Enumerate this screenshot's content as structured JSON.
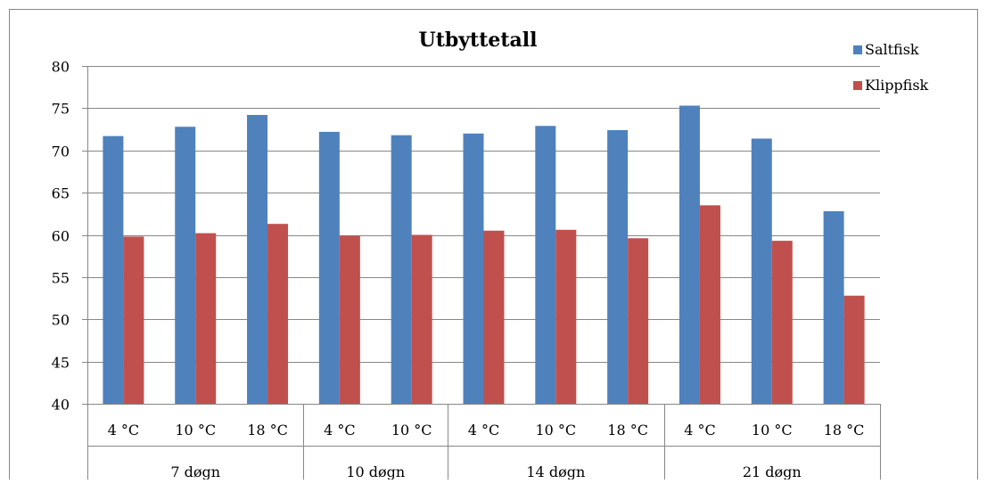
{
  "chart_data": {
    "type": "bar",
    "title": "Utbyttetall",
    "xlabel": "",
    "ylabel": "",
    "ylim": [
      40,
      80
    ],
    "yticks": [
      40,
      45,
      50,
      55,
      60,
      65,
      70,
      75,
      80
    ],
    "grid": true,
    "legend_position": "top-right",
    "groups": [
      {
        "label": "7 døgn",
        "categories": [
          "4 °C",
          "10 °C",
          "18 °C"
        ]
      },
      {
        "label": "10 døgn",
        "categories": [
          "4 °C",
          "10 °C"
        ]
      },
      {
        "label": "14 døgn",
        "categories": [
          "4 °C",
          "10 °C",
          "18 °C"
        ]
      },
      {
        "label": "21 døgn",
        "categories": [
          "4 °C",
          "10 °C",
          "18 °C"
        ]
      }
    ],
    "categories": [
      "4 °C",
      "10 °C",
      "18 °C",
      "4 °C",
      "10 °C",
      "4 °C",
      "10 °C",
      "18 °C",
      "4 °C",
      "10 °C",
      "18 °C"
    ],
    "series": [
      {
        "name": "Saltfisk",
        "color": "#4F81BD",
        "values": [
          71.7,
          72.8,
          74.2,
          72.2,
          71.8,
          72.0,
          72.9,
          72.4,
          75.3,
          71.4,
          62.8
        ]
      },
      {
        "name": "Klippfisk",
        "color": "#C0504D",
        "values": [
          59.8,
          60.2,
          61.3,
          59.9,
          60.0,
          60.5,
          60.6,
          59.6,
          63.5,
          59.3,
          52.8
        ]
      }
    ]
  }
}
